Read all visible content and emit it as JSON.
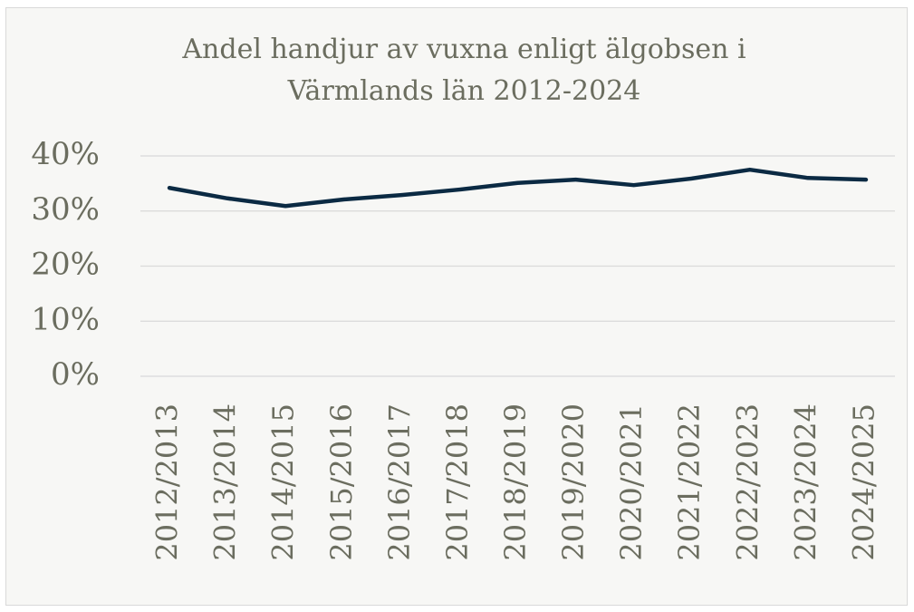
{
  "chart_data": {
    "type": "line",
    "title": "Andel handjur av vuxna enligt älgobsen i Värmlands län 2012-2024",
    "categories": [
      "2012/2013",
      "2013/2014",
      "2014/2015",
      "2015/2016",
      "2016/2017",
      "2017/2018",
      "2018/2019",
      "2019/2020",
      "2020/2021",
      "2021/2022",
      "2022/2023",
      "2023/2024",
      "2024/2025"
    ],
    "series": [
      {
        "name": "Andel handjur",
        "color": "#0b2a43",
        "values": [
          34.2,
          32.3,
          30.9,
          32.1,
          32.9,
          33.9,
          35.1,
          35.7,
          34.7,
          35.9,
          37.5,
          36.0,
          35.7
        ]
      }
    ],
    "ylim": [
      0,
      40
    ],
    "yticks": [
      {
        "value": 0,
        "label": "0%"
      },
      {
        "value": 10,
        "label": "10%"
      },
      {
        "value": 20,
        "label": "20%"
      },
      {
        "value": 30,
        "label": "30%"
      },
      {
        "value": 40,
        "label": "40%"
      }
    ],
    "grid": true
  }
}
